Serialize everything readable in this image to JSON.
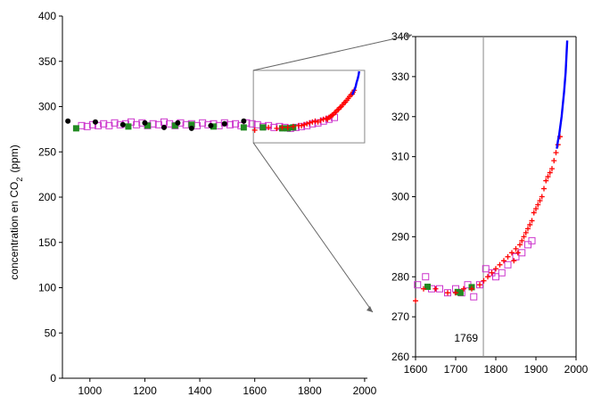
{
  "colors": {
    "ice_core_squares": "#cc33cc",
    "ice_core_green": "#228b22",
    "ice_core_black": "#000000",
    "firn_crosses": "#ff0000",
    "mauna_loa_line": "#0000ff",
    "frame": "#888888"
  },
  "chart_data": [
    {
      "type": "scatter",
      "title": "",
      "ylabel_main": "concentration en CO",
      "ylabel_sub": "2",
      "ylabel_unit": "(ppm)",
      "xlim": [
        900,
        2010
      ],
      "ylim": [
        0,
        400
      ],
      "xticks": [
        1000,
        1200,
        1400,
        1600,
        1800,
        2000
      ],
      "yticks": [
        0,
        50,
        100,
        150,
        200,
        250,
        300,
        350,
        400
      ],
      "grid": false,
      "zoom_box": {
        "x": [
          1595,
          2000
        ],
        "y": [
          260,
          340
        ]
      },
      "series": [
        {
          "marker": "open-square",
          "color_key": "ice_core_squares",
          "x": [
            970,
            990,
            1010,
            1030,
            1050,
            1070,
            1090,
            1110,
            1130,
            1150,
            1170,
            1190,
            1210,
            1230,
            1250,
            1270,
            1290,
            1310,
            1330,
            1350,
            1370,
            1390,
            1410,
            1430,
            1450,
            1470,
            1490,
            1510,
            1530,
            1550,
            1570,
            1590,
            1610,
            1630,
            1650,
            1670,
            1690,
            1710,
            1730,
            1750,
            1770,
            1790,
            1810,
            1830,
            1850,
            1870,
            1890
          ],
          "y": [
            279,
            278,
            280,
            279,
            281,
            279,
            282,
            280,
            281,
            283,
            280,
            282,
            279,
            281,
            280,
            283,
            281,
            279,
            282,
            280,
            281,
            279,
            282,
            280,
            281,
            279,
            282,
            280,
            281,
            279,
            282,
            281,
            280,
            278,
            279,
            277,
            278,
            277,
            276,
            277,
            278,
            279,
            281,
            282,
            284,
            286,
            288
          ]
        },
        {
          "marker": "filled-square",
          "color_key": "ice_core_green",
          "x": [
            950,
            1140,
            1210,
            1310,
            1370,
            1450,
            1560,
            1630,
            1700,
            1720,
            1740
          ],
          "y": [
            276,
            278,
            279,
            279,
            280,
            278,
            277,
            277,
            276,
            276,
            277
          ]
        },
        {
          "marker": "filled-circle",
          "color_key": "ice_core_black",
          "x": [
            920,
            1020,
            1120,
            1200,
            1270,
            1320,
            1370,
            1440,
            1490,
            1560
          ],
          "y": [
            284,
            283,
            280,
            282,
            277,
            282,
            276,
            279,
            281,
            284
          ]
        },
        {
          "marker": "cross",
          "color_key": "firn_crosses",
          "x": [
            1600,
            1650,
            1680,
            1700,
            1720,
            1740,
            1760,
            1770,
            1780,
            1790,
            1800,
            1810,
            1820,
            1830,
            1840,
            1850,
            1860,
            1865,
            1870,
            1875,
            1880,
            1885,
            1890,
            1895,
            1900,
            1905,
            1910,
            1915,
            1920,
            1925,
            1930,
            1935,
            1940,
            1945,
            1950,
            1955,
            1958,
            1962
          ],
          "y": [
            274,
            277,
            276,
            277,
            277,
            278,
            279,
            279,
            280,
            281,
            282,
            283,
            284,
            283,
            285,
            286,
            287,
            286,
            288,
            289,
            290,
            291,
            293,
            294,
            296,
            297,
            299,
            300,
            302,
            304,
            305,
            307,
            309,
            311,
            313,
            314,
            316,
            318
          ]
        },
        {
          "marker": "line",
          "color_key": "mauna_loa_line",
          "x": [
            1955,
            1958,
            1960,
            1962,
            1965,
            1968,
            1970,
            1972,
            1975,
            1978,
            1980
          ],
          "y": [
            313,
            315,
            317,
            318,
            320,
            323,
            326,
            328,
            331,
            335,
            339
          ]
        }
      ]
    },
    {
      "type": "scatter",
      "title": "",
      "xlim": [
        1600,
        2000
      ],
      "ylim": [
        260,
        340
      ],
      "xticks": [
        1600,
        1700,
        1800,
        1900,
        2000
      ],
      "yticks": [
        260,
        270,
        280,
        290,
        300,
        310,
        320,
        330,
        340
      ],
      "grid": false,
      "marker_line": {
        "x": 1769,
        "label": "1769"
      },
      "series": [
        {
          "marker": "open-square",
          "color_key": "ice_core_squares",
          "x": [
            1605,
            1625,
            1640,
            1660,
            1680,
            1700,
            1715,
            1730,
            1745,
            1760,
            1775,
            1790,
            1800,
            1815,
            1830,
            1850,
            1865,
            1880,
            1890
          ],
          "y": [
            278,
            280,
            277,
            277,
            276,
            277,
            276,
            278,
            275,
            278,
            282,
            281,
            280,
            281,
            283,
            285,
            286,
            288,
            289
          ]
        },
        {
          "marker": "filled-square",
          "color_key": "ice_core_green",
          "x": [
            1630,
            1705,
            1712,
            1740
          ],
          "y": [
            277.5,
            276.2,
            276.0,
            277.4
          ]
        },
        {
          "marker": "cross",
          "color_key": "firn_crosses",
          "x": [
            1600,
            1620,
            1650,
            1680,
            1700,
            1720,
            1740,
            1760,
            1770,
            1780,
            1790,
            1800,
            1810,
            1820,
            1830,
            1840,
            1845,
            1850,
            1855,
            1860,
            1865,
            1870,
            1875,
            1880,
            1885,
            1890,
            1895,
            1900,
            1905,
            1910,
            1915,
            1920,
            1925,
            1930,
            1935,
            1940,
            1945,
            1950,
            1955,
            1960
          ],
          "y": [
            274,
            277,
            277,
            276,
            276,
            277,
            277,
            278,
            279,
            280,
            281,
            282,
            283,
            284,
            285,
            286,
            284,
            287,
            286,
            288,
            289,
            290,
            291,
            292,
            293,
            294,
            296,
            297,
            298,
            299,
            300,
            302,
            304,
            305,
            306,
            307,
            309,
            311,
            313,
            315
          ]
        },
        {
          "marker": "line",
          "color_key": "mauna_loa_line",
          "x": [
            1952,
            1955,
            1958,
            1960,
            1962,
            1964,
            1966,
            1968,
            1970,
            1972,
            1974,
            1976,
            1978
          ],
          "y": [
            312,
            314,
            315.5,
            317,
            318.5,
            320,
            322,
            324,
            326,
            328.5,
            331,
            335,
            339
          ]
        }
      ]
    }
  ]
}
